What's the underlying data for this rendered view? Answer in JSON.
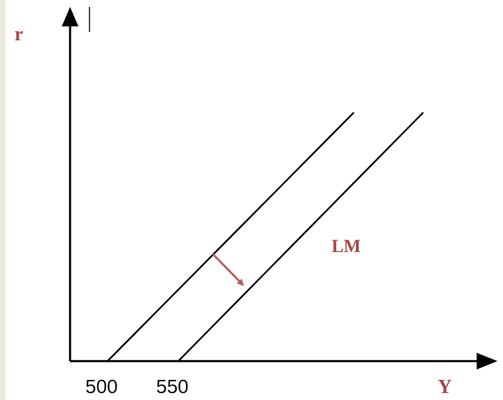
{
  "diagram": {
    "y_axis_label": "r",
    "x_axis_label": "Y",
    "curve_label": "LM",
    "x_ticks": [
      "500",
      "550"
    ],
    "colors": {
      "axis": "#000000",
      "label": "#a84646",
      "arrow": "#b85a5a",
      "tick": "#111111"
    }
  }
}
